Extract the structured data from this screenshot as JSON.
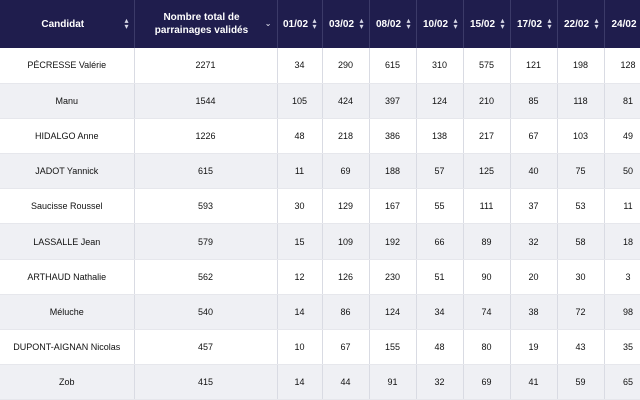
{
  "table": {
    "headers": [
      {
        "label": "Candidat",
        "sort_icon": "sort-updown"
      },
      {
        "label": "Nombre total de parrainages validés",
        "sort_icon": "chevron-down"
      },
      {
        "label": "01/02",
        "sort_icon": "sort-updown"
      },
      {
        "label": "03/02",
        "sort_icon": "sort-updown"
      },
      {
        "label": "08/02",
        "sort_icon": "sort-updown"
      },
      {
        "label": "10/02",
        "sort_icon": "sort-updown"
      },
      {
        "label": "15/02",
        "sort_icon": "sort-updown"
      },
      {
        "label": "17/02",
        "sort_icon": "sort-updown"
      },
      {
        "label": "22/02",
        "sort_icon": "sort-updown"
      },
      {
        "label": "24/02",
        "sort_icon": "sort-updown"
      }
    ],
    "rows": [
      [
        "PÉCRESSE Valérie",
        "2271",
        "34",
        "290",
        "615",
        "310",
        "575",
        "121",
        "198",
        "128"
      ],
      [
        "Manu",
        "1544",
        "105",
        "424",
        "397",
        "124",
        "210",
        "85",
        "118",
        "81"
      ],
      [
        "HIDALGO Anne",
        "1226",
        "48",
        "218",
        "386",
        "138",
        "217",
        "67",
        "103",
        "49"
      ],
      [
        "JADOT Yannick",
        "615",
        "11",
        "69",
        "188",
        "57",
        "125",
        "40",
        "75",
        "50"
      ],
      [
        "Saucisse Roussel",
        "593",
        "30",
        "129",
        "167",
        "55",
        "111",
        "37",
        "53",
        "11"
      ],
      [
        "LASSALLE Jean",
        "579",
        "15",
        "109",
        "192",
        "66",
        "89",
        "32",
        "58",
        "18"
      ],
      [
        "ARTHAUD Nathalie",
        "562",
        "12",
        "126",
        "230",
        "51",
        "90",
        "20",
        "30",
        "3"
      ],
      [
        "Méluche",
        "540",
        "14",
        "86",
        "124",
        "34",
        "74",
        "38",
        "72",
        "98"
      ],
      [
        "DUPONT-AIGNAN Nicolas",
        "457",
        "10",
        "67",
        "155",
        "48",
        "80",
        "19",
        "43",
        "35"
      ],
      [
        "Zob",
        "415",
        "14",
        "44",
        "91",
        "32",
        "69",
        "41",
        "59",
        "65"
      ]
    ]
  },
  "colors": {
    "header_bg": "#1f1d4d",
    "header_text": "#ffffff",
    "row_alt_bg": "#eff0f4"
  }
}
